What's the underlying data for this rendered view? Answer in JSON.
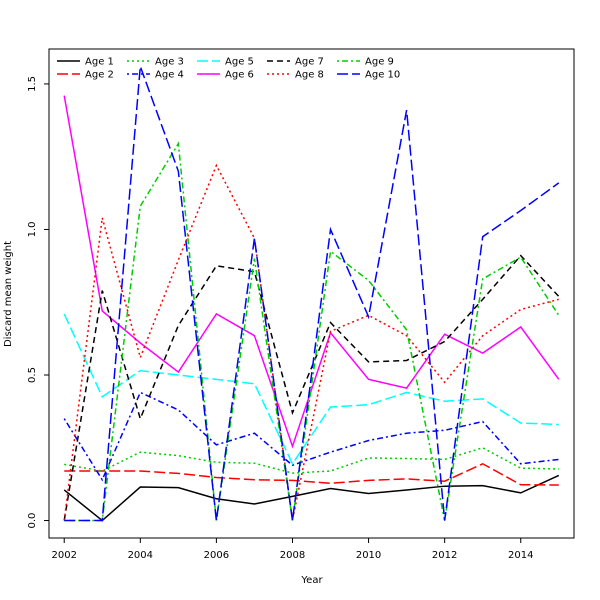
{
  "chart_data": {
    "type": "line",
    "title": "",
    "xlabel": "Year",
    "ylabel": "Discard mean weight",
    "xlim": [
      2001.6,
      2015.4
    ],
    "ylim": [
      -0.06,
      1.62
    ],
    "x_ticks": [
      2002,
      2004,
      2006,
      2008,
      2010,
      2012,
      2014
    ],
    "y_ticks": [
      0.0,
      0.5,
      1.0,
      1.5
    ],
    "y_tick_labels": [
      "0.0",
      "0.5",
      "1.0",
      "1.5"
    ],
    "grid": false,
    "legend_placement": "top-left",
    "x": [
      2002,
      2003,
      2004,
      2005,
      2006,
      2007,
      2008,
      2009,
      2010,
      2011,
      2012,
      2013,
      2014,
      2015
    ],
    "series": [
      {
        "name": "Age 1",
        "color": "#000000",
        "dash": "solid",
        "values": [
          0.105,
          0.0,
          0.115,
          0.113,
          0.075,
          0.057,
          0.083,
          0.11,
          0.093,
          0.105,
          0.118,
          0.12,
          0.095,
          0.155
        ]
      },
      {
        "name": "Age 2",
        "color": "#ff0000",
        "dash": "longdash",
        "values": [
          0.17,
          0.17,
          0.17,
          0.162,
          0.148,
          0.14,
          0.138,
          0.128,
          0.138,
          0.143,
          0.135,
          0.195,
          0.123,
          0.122
        ]
      },
      {
        "name": "Age 3",
        "color": "#00cd00",
        "dash": "dotted",
        "values": [
          0.193,
          0.17,
          0.235,
          0.223,
          0.2,
          0.197,
          0.163,
          0.17,
          0.215,
          0.213,
          0.21,
          0.25,
          0.18,
          0.177
        ]
      },
      {
        "name": "Age 4",
        "color": "#0000ff",
        "dash": "dotdash",
        "values": [
          0.35,
          0.14,
          0.44,
          0.38,
          0.26,
          0.3,
          0.19,
          0.235,
          0.275,
          0.3,
          0.31,
          0.34,
          0.195,
          0.21
        ]
      },
      {
        "name": "Age 5",
        "color": "#00ffff",
        "dash": "longdash",
        "values": [
          0.71,
          0.425,
          0.515,
          0.5,
          0.485,
          0.47,
          0.195,
          0.39,
          0.398,
          0.44,
          0.41,
          0.418,
          0.335,
          0.33
        ]
      },
      {
        "name": "Age 6",
        "color": "#ff00ff",
        "dash": "solid",
        "values": [
          1.46,
          0.72,
          0.61,
          0.51,
          0.71,
          0.635,
          0.255,
          0.645,
          0.485,
          0.455,
          0.64,
          0.575,
          0.665,
          0.485
        ]
      },
      {
        "name": "Age 7",
        "color": "#000000",
        "dash": "dashed",
        "values": [
          0.0,
          0.79,
          0.35,
          0.67,
          0.875,
          0.855,
          0.37,
          0.68,
          0.545,
          0.55,
          0.615,
          0.76,
          0.91,
          0.77
        ]
      },
      {
        "name": "Age 8",
        "color": "#ff0000",
        "dash": "dotted",
        "values": [
          0.0,
          1.04,
          0.56,
          0.895,
          1.22,
          0.97,
          0.0,
          0.65,
          0.705,
          0.635,
          0.475,
          0.635,
          0.725,
          0.76
        ]
      },
      {
        "name": "Age 9",
        "color": "#00cd00",
        "dash": "dotdash",
        "values": [
          0.0,
          0.0,
          1.08,
          1.295,
          0.0,
          0.9,
          0.0,
          0.925,
          0.825,
          0.655,
          0.0,
          0.83,
          0.905,
          0.705
        ]
      },
      {
        "name": "Age 10",
        "color": "#0000ff",
        "dash": "longdash",
        "values": [
          0.0,
          0.0,
          1.56,
          1.2,
          0.0,
          0.97,
          0.0,
          1.0,
          0.7,
          1.41,
          0.0,
          0.975,
          1.065,
          1.16
        ]
      }
    ]
  }
}
